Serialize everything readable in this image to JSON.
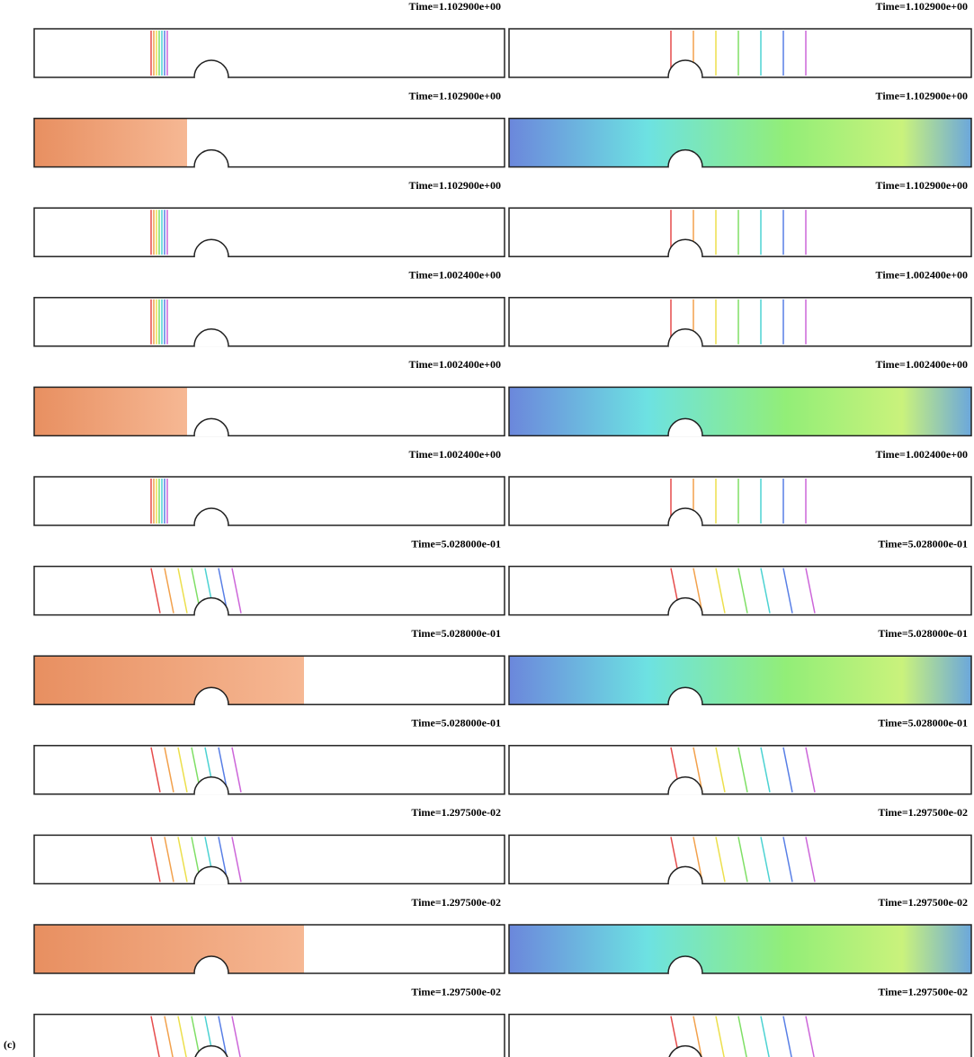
{
  "figure_label": "(c)",
  "panels": [
    {
      "left_title": "Time=1.102900e+00",
      "right_title": "Time=1.102900e+00"
    },
    {
      "left_title": "Time=1.102900e+00",
      "right_title": "Time=1.102900e+00"
    },
    {
      "left_title": "Time=1.102900e+00",
      "right_title": "Time=1.102900e+00"
    },
    {
      "left_title": "Time=1.002400e+00",
      "right_title": "Time=1.002400e+00"
    },
    {
      "left_title": "Time=1.002400e+00",
      "right_title": "Time=1.002400e+00"
    },
    {
      "left_title": "Time=1.002400e+00",
      "right_title": "Time=1.002400e+00"
    },
    {
      "left_title": "Time=5.028000e-01",
      "right_title": "Time=5.028000e-01"
    },
    {
      "left_title": "Time=5.028000e-01",
      "right_title": "Time=5.028000e-01"
    },
    {
      "left_title": "Time=5.028000e-01",
      "right_title": "Time=5.028000e-01"
    },
    {
      "left_title": "Time=1.297500e-02",
      "right_title": "Time=1.297500e-02"
    },
    {
      "left_title": "Time=1.297500e-02",
      "right_title": "Time=1.297500e-02"
    },
    {
      "left_title": "Time=1.297500e-02",
      "right_title": "Time=1.297500e-02"
    }
  ]
}
